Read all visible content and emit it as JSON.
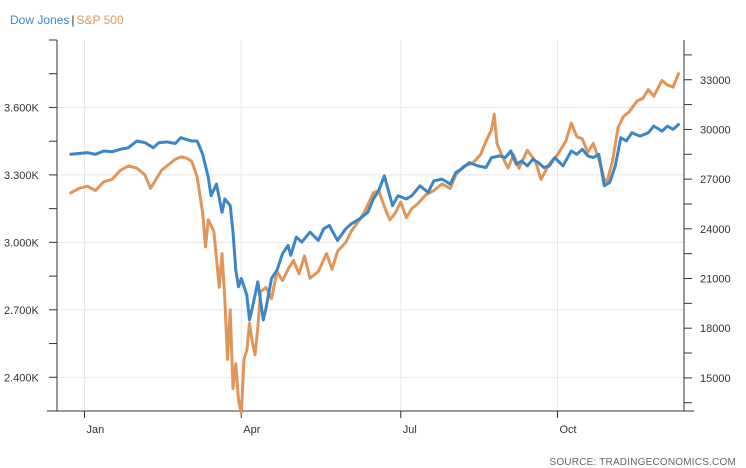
{
  "chart_data": {
    "type": "line",
    "title": "",
    "legend_position": "top-left",
    "grid": true,
    "colors": {
      "Dow Jones": "#3d86c6",
      "S&P 500": "#e0965a",
      "axis": "#333333",
      "grid": "#e8e8e8"
    },
    "x_ticks": [
      {
        "label": "Jan",
        "value": 0.25
      },
      {
        "label": "Apr",
        "value": 3.1
      },
      {
        "label": "Jul",
        "value": 6.0
      },
      {
        "label": "Oct",
        "value": 8.85
      }
    ],
    "x_range": [
      -0.25,
      11.15
    ],
    "left_axis": {
      "ticks": [
        "2.400K",
        "2.700K",
        "3.000K",
        "3.300K",
        "3.600K"
      ],
      "tick_values": [
        2400,
        2700,
        3000,
        3300,
        3600
      ],
      "range": [
        2250,
        3900
      ]
    },
    "right_axis": {
      "ticks": [
        "15000",
        "18000",
        "21000",
        "24000",
        "27000",
        "30000",
        "33000"
      ],
      "tick_values": [
        15000,
        18000,
        21000,
        24000,
        27000,
        30000,
        33000
      ],
      "range": [
        13000,
        35400
      ]
    },
    "series": [
      {
        "name": "Dow Jones",
        "axis": "right",
        "points": [
          [
            0.0,
            28500
          ],
          [
            0.15,
            28550
          ],
          [
            0.3,
            28600
          ],
          [
            0.45,
            28500
          ],
          [
            0.6,
            28700
          ],
          [
            0.75,
            28650
          ],
          [
            0.9,
            28800
          ],
          [
            1.05,
            28900
          ],
          [
            1.2,
            29300
          ],
          [
            1.35,
            29200
          ],
          [
            1.5,
            28900
          ],
          [
            1.6,
            29200
          ],
          [
            1.75,
            29250
          ],
          [
            1.9,
            29150
          ],
          [
            2.0,
            29500
          ],
          [
            2.1,
            29400
          ],
          [
            2.2,
            29300
          ],
          [
            2.3,
            29300
          ],
          [
            2.4,
            28500
          ],
          [
            2.5,
            27100
          ],
          [
            2.55,
            26000
          ],
          [
            2.65,
            26700
          ],
          [
            2.75,
            25000
          ],
          [
            2.8,
            25800
          ],
          [
            2.9,
            25400
          ],
          [
            2.95,
            23800
          ],
          [
            3.0,
            21500
          ],
          [
            3.05,
            20500
          ],
          [
            3.1,
            21000
          ],
          [
            3.2,
            20000
          ],
          [
            3.25,
            18500
          ],
          [
            3.3,
            19200
          ],
          [
            3.4,
            20800
          ],
          [
            3.5,
            18500
          ],
          [
            3.55,
            19200
          ],
          [
            3.65,
            21000
          ],
          [
            3.75,
            21500
          ],
          [
            3.85,
            22500
          ],
          [
            3.95,
            23000
          ],
          [
            4.0,
            22400
          ],
          [
            4.1,
            23500
          ],
          [
            4.2,
            23200
          ],
          [
            4.35,
            23800
          ],
          [
            4.5,
            23300
          ],
          [
            4.6,
            24000
          ],
          [
            4.7,
            24200
          ],
          [
            4.85,
            23300
          ],
          [
            5.0,
            24000
          ],
          [
            5.1,
            24300
          ],
          [
            5.25,
            24600
          ],
          [
            5.4,
            25000
          ],
          [
            5.5,
            25800
          ],
          [
            5.6,
            26300
          ],
          [
            5.7,
            27200
          ],
          [
            5.8,
            26000
          ],
          [
            5.85,
            25400
          ],
          [
            5.95,
            26000
          ],
          [
            6.1,
            25800
          ],
          [
            6.2,
            26000
          ],
          [
            6.35,
            26600
          ],
          [
            6.5,
            26200
          ],
          [
            6.6,
            26900
          ],
          [
            6.75,
            27000
          ],
          [
            6.9,
            26700
          ],
          [
            7.0,
            27400
          ],
          [
            7.1,
            27600
          ],
          [
            7.25,
            28000
          ],
          [
            7.4,
            27800
          ],
          [
            7.55,
            27700
          ],
          [
            7.65,
            28300
          ],
          [
            7.8,
            28400
          ],
          [
            7.9,
            28300
          ],
          [
            8.0,
            28700
          ],
          [
            8.1,
            27900
          ],
          [
            8.2,
            28100
          ],
          [
            8.3,
            27800
          ],
          [
            8.4,
            28200
          ],
          [
            8.5,
            28000
          ],
          [
            8.6,
            27700
          ],
          [
            8.7,
            27800
          ],
          [
            8.8,
            28300
          ],
          [
            8.95,
            27800
          ],
          [
            9.1,
            28700
          ],
          [
            9.2,
            28500
          ],
          [
            9.3,
            28800
          ],
          [
            9.4,
            28400
          ],
          [
            9.5,
            28300
          ],
          [
            9.6,
            28500
          ],
          [
            9.7,
            26600
          ],
          [
            9.8,
            26800
          ],
          [
            9.9,
            27800
          ],
          [
            10.0,
            29500
          ],
          [
            10.1,
            29300
          ],
          [
            10.2,
            29800
          ],
          [
            10.35,
            29600
          ],
          [
            10.5,
            29800
          ],
          [
            10.6,
            30200
          ],
          [
            10.75,
            29900
          ],
          [
            10.85,
            30200
          ],
          [
            10.95,
            30000
          ],
          [
            11.05,
            30300
          ]
        ]
      },
      {
        "name": "S&P 500",
        "axis": "left",
        "points": [
          [
            0.0,
            3220
          ],
          [
            0.15,
            3240
          ],
          [
            0.3,
            3250
          ],
          [
            0.45,
            3230
          ],
          [
            0.6,
            3270
          ],
          [
            0.75,
            3280
          ],
          [
            0.9,
            3320
          ],
          [
            1.05,
            3340
          ],
          [
            1.2,
            3330
          ],
          [
            1.35,
            3300
          ],
          [
            1.45,
            3240
          ],
          [
            1.55,
            3280
          ],
          [
            1.65,
            3320
          ],
          [
            1.75,
            3340
          ],
          [
            1.9,
            3370
          ],
          [
            2.0,
            3380
          ],
          [
            2.1,
            3375
          ],
          [
            2.2,
            3360
          ],
          [
            2.3,
            3290
          ],
          [
            2.4,
            3130
          ],
          [
            2.45,
            2980
          ],
          [
            2.5,
            3100
          ],
          [
            2.6,
            3050
          ],
          [
            2.7,
            2800
          ],
          [
            2.75,
            2950
          ],
          [
            2.8,
            2750
          ],
          [
            2.85,
            2480
          ],
          [
            2.9,
            2700
          ],
          [
            2.95,
            2350
          ],
          [
            3.0,
            2460
          ],
          [
            3.05,
            2300
          ],
          [
            3.1,
            2240
          ],
          [
            3.15,
            2480
          ],
          [
            3.2,
            2520
          ],
          [
            3.25,
            2640
          ],
          [
            3.3,
            2560
          ],
          [
            3.35,
            2500
          ],
          [
            3.4,
            2620
          ],
          [
            3.45,
            2780
          ],
          [
            3.55,
            2800
          ],
          [
            3.65,
            2750
          ],
          [
            3.75,
            2870
          ],
          [
            3.85,
            2830
          ],
          [
            3.95,
            2880
          ],
          [
            4.05,
            2920
          ],
          [
            4.15,
            2860
          ],
          [
            4.25,
            2940
          ],
          [
            4.35,
            2840
          ],
          [
            4.5,
            2870
          ],
          [
            4.65,
            2950
          ],
          [
            4.75,
            2880
          ],
          [
            4.85,
            2960
          ],
          [
            5.0,
            3000
          ],
          [
            5.1,
            3050
          ],
          [
            5.25,
            3100
          ],
          [
            5.35,
            3140
          ],
          [
            5.5,
            3220
          ],
          [
            5.6,
            3230
          ],
          [
            5.7,
            3160
          ],
          [
            5.8,
            3100
          ],
          [
            5.9,
            3130
          ],
          [
            6.0,
            3180
          ],
          [
            6.1,
            3110
          ],
          [
            6.2,
            3150
          ],
          [
            6.3,
            3170
          ],
          [
            6.45,
            3210
          ],
          [
            6.6,
            3230
          ],
          [
            6.75,
            3260
          ],
          [
            6.9,
            3240
          ],
          [
            7.0,
            3300
          ],
          [
            7.15,
            3340
          ],
          [
            7.3,
            3350
          ],
          [
            7.45,
            3390
          ],
          [
            7.55,
            3450
          ],
          [
            7.65,
            3500
          ],
          [
            7.7,
            3570
          ],
          [
            7.75,
            3440
          ],
          [
            7.85,
            3380
          ],
          [
            7.95,
            3330
          ],
          [
            8.05,
            3390
          ],
          [
            8.15,
            3330
          ],
          [
            8.3,
            3410
          ],
          [
            8.45,
            3360
          ],
          [
            8.55,
            3280
          ],
          [
            8.7,
            3350
          ],
          [
            8.85,
            3390
          ],
          [
            9.0,
            3450
          ],
          [
            9.1,
            3530
          ],
          [
            9.2,
            3470
          ],
          [
            9.3,
            3460
          ],
          [
            9.4,
            3400
          ],
          [
            9.5,
            3440
          ],
          [
            9.6,
            3370
          ],
          [
            9.7,
            3280
          ],
          [
            9.75,
            3270
          ],
          [
            9.85,
            3360
          ],
          [
            9.95,
            3510
          ],
          [
            10.05,
            3560
          ],
          [
            10.15,
            3580
          ],
          [
            10.3,
            3630
          ],
          [
            10.4,
            3640
          ],
          [
            10.5,
            3680
          ],
          [
            10.6,
            3650
          ],
          [
            10.75,
            3720
          ],
          [
            10.85,
            3700
          ],
          [
            10.95,
            3690
          ],
          [
            11.05,
            3750
          ]
        ]
      }
    ]
  }
}
